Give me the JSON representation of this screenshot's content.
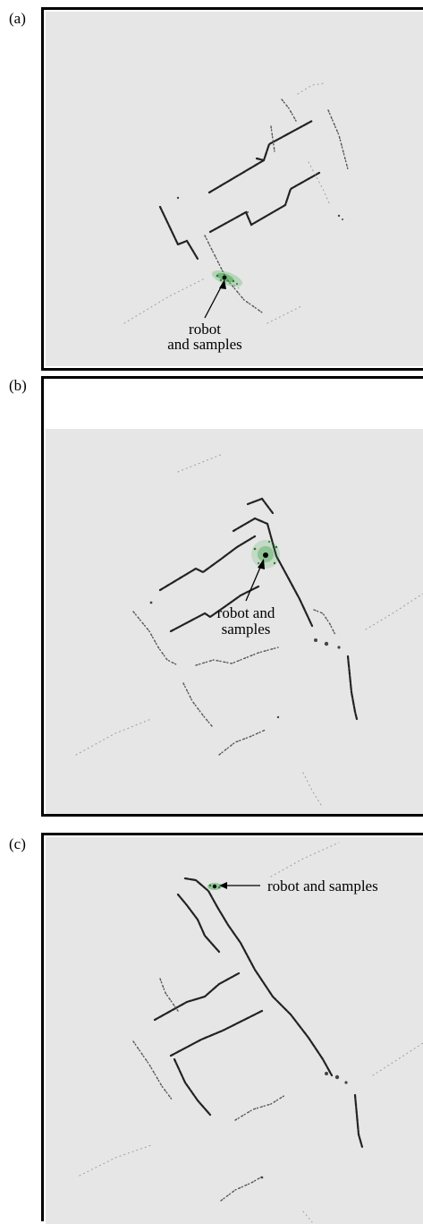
{
  "panels": [
    {
      "id": "a",
      "label": "(a)",
      "annotation_lines": [
        "robot",
        "and samples"
      ]
    },
    {
      "id": "b",
      "label": "(b)",
      "annotation_lines": [
        "robot and",
        "samples"
      ]
    },
    {
      "id": "c",
      "label": "(c)",
      "annotation_lines": [
        "robot and samples"
      ]
    }
  ],
  "colors": {
    "map_background": "#e6e6e6",
    "wall": "#222222",
    "samples": "#2e9e3a",
    "robot": "#000000"
  }
}
